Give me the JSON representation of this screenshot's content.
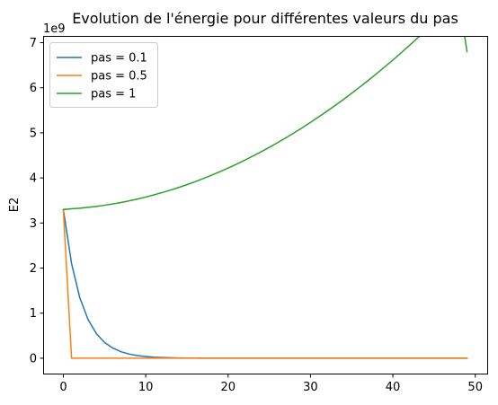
{
  "chart_data": {
    "type": "line",
    "title": "Evolution de l'énergie pour différentes valeurs du pas",
    "xlabel": "",
    "ylabel": "E2",
    "y_offset_label": "1e9",
    "xlim": [
      -2.45,
      51.45
    ],
    "ylim": [
      -0.34,
      7.15
    ],
    "x_ticks": [
      0,
      10,
      20,
      30,
      40,
      50
    ],
    "x_tick_labels": [
      "0",
      "10",
      "20",
      "30",
      "40",
      "50"
    ],
    "y_ticks": [
      0,
      1,
      2,
      3,
      4,
      5,
      6,
      7
    ],
    "y_tick_labels": [
      "0",
      "1",
      "2",
      "3",
      "4",
      "5",
      "6",
      "7"
    ],
    "grid": false,
    "legend_position": "top-left",
    "colors": [
      "#1f77b4",
      "#ff7f0e",
      "#2ca02c"
    ],
    "series": [
      {
        "name": "pas = 0.1",
        "color": "#1f77b4",
        "x": [
          0,
          1,
          2,
          3,
          4,
          5,
          6,
          7,
          8,
          9,
          10,
          11,
          12,
          13,
          14,
          15,
          16,
          17,
          18,
          19,
          20,
          21,
          22,
          23,
          24,
          25,
          26,
          27,
          28,
          29,
          30,
          31,
          32,
          33,
          34,
          35,
          36,
          37,
          38,
          39,
          40,
          41,
          42,
          43,
          44,
          45,
          46,
          47,
          48,
          49
        ],
        "y": [
          3.3,
          2.1,
          1.34,
          0.86,
          0.55,
          0.35,
          0.225,
          0.144,
          0.092,
          0.059,
          0.038,
          0.024,
          0.015,
          0.0099,
          0.0063,
          0.004,
          0.0026,
          0.0017,
          0.0011,
          0.0007,
          0.0004,
          0.0003,
          0.0002,
          0.0001,
          0.0001,
          0,
          0,
          0,
          0,
          0,
          0,
          0,
          0,
          0,
          0,
          0,
          0,
          0,
          0,
          0,
          0,
          0,
          0,
          0,
          0,
          0,
          0,
          0,
          0,
          0
        ]
      },
      {
        "name": "pas = 0.5",
        "color": "#ff7f0e",
        "x": [
          0,
          1,
          2,
          3,
          4,
          5,
          6,
          7,
          8,
          9,
          10,
          11,
          12,
          13,
          14,
          15,
          16,
          17,
          18,
          19,
          20,
          21,
          22,
          23,
          24,
          25,
          26,
          27,
          28,
          29,
          30,
          31,
          32,
          33,
          34,
          35,
          36,
          37,
          38,
          39,
          40,
          41,
          42,
          43,
          44,
          45,
          46,
          47,
          48,
          49
        ],
        "y": [
          3.3,
          0,
          0,
          0,
          0,
          0,
          0,
          0,
          0,
          0,
          0,
          0,
          0,
          0,
          0,
          0,
          0,
          0,
          0,
          0,
          0,
          0,
          0,
          0,
          0,
          0,
          0,
          0,
          0,
          0,
          0,
          0,
          0,
          0,
          0,
          0,
          0,
          0,
          0,
          0,
          0,
          0,
          0,
          0,
          0,
          0,
          0,
          0,
          0,
          0
        ]
      },
      {
        "name": "pas = 1",
        "color": "#2ca02c",
        "x": [
          0,
          1,
          2,
          3,
          4,
          5,
          6,
          7,
          8,
          9,
          10,
          11,
          12,
          13,
          14,
          15,
          16,
          17,
          18,
          19,
          20,
          21,
          22,
          23,
          24,
          25,
          26,
          27,
          28,
          29,
          30,
          31,
          32,
          33,
          34,
          35,
          36,
          37,
          38,
          39,
          40,
          41,
          42,
          43,
          44,
          45,
          46,
          47,
          48,
          49
        ],
        "y": [
          3.3,
          3.3147,
          3.3289,
          3.3468,
          3.3684,
          3.3938,
          3.4228,
          3.4555,
          3.492,
          3.5322,
          3.576,
          3.6236,
          3.6749,
          3.7299,
          3.7886,
          3.851,
          3.9171,
          3.9869,
          4.0604,
          4.1376,
          4.2186,
          4.3032,
          4.3915,
          4.4836,
          4.5794,
          4.6788,
          4.782,
          4.8889,
          4.9995,
          5.1138,
          5.2318,
          5.3535,
          5.479,
          5.6081,
          5.741,
          5.8775,
          6.0178,
          6.1618,
          6.3095,
          6.4609,
          6.616,
          6.7749,
          6.9374,
          7.1037,
          7.2737,
          7.4474,
          7.6248,
          7.8059,
          7.9907,
          6.8
        ]
      }
    ]
  }
}
